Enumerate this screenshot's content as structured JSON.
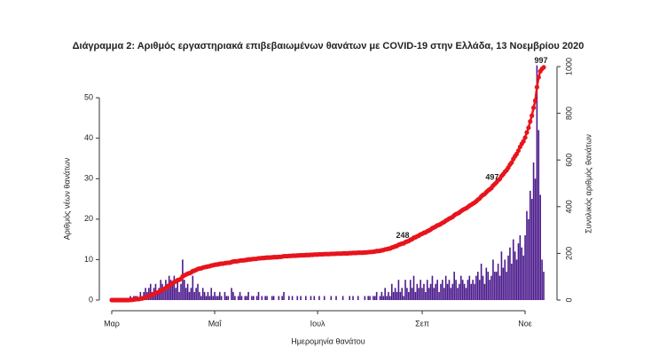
{
  "chart_data": {
    "type": "bar",
    "title": "Διάγραμμα 2: Αριθμός εργαστηριακά επιβεβαιωμένων θανάτων με COVID-19 στην Ελλάδα, 13 Νοεμβρίου 2020",
    "x_label": "Ημερομηνία θανάτου",
    "y_label": "Αριθμός νέων θανάτων",
    "y2_label": "Συνολικός αριθμός θανάτων",
    "categories": [
      "Μαρ",
      null,
      null,
      null,
      null,
      null,
      null,
      null,
      null,
      null,
      null,
      null,
      null,
      null,
      null,
      null,
      null,
      null,
      null,
      null,
      null,
      null,
      null,
      null,
      null,
      null,
      null,
      null,
      null,
      null,
      null,
      null,
      null,
      null,
      null,
      null,
      null,
      null,
      null,
      null,
      null,
      null,
      null,
      null,
      null,
      null,
      null,
      null,
      null,
      null,
      null,
      null,
      null,
      null,
      null,
      null,
      null,
      null,
      null,
      null,
      null,
      "Μαΐ",
      null,
      null,
      null,
      null,
      null,
      null,
      null,
      null,
      null,
      null,
      null,
      null,
      null,
      null,
      null,
      null,
      null,
      null,
      null,
      null,
      null,
      null,
      null,
      null,
      null,
      null,
      null,
      null,
      null,
      null,
      null,
      null,
      null,
      null,
      null,
      null,
      null,
      null,
      null,
      null,
      null,
      null,
      null,
      null,
      null,
      null,
      null,
      null,
      null,
      null,
      null,
      null,
      null,
      null,
      null,
      null,
      null,
      null,
      null,
      null,
      "Ιουλ",
      null,
      null,
      null,
      null,
      null,
      null,
      null,
      null,
      null,
      null,
      null,
      null,
      null,
      null,
      null,
      null,
      null,
      null,
      null,
      null,
      null,
      null,
      null,
      null,
      null,
      null,
      null,
      null,
      null,
      null,
      null,
      null,
      null,
      null,
      null,
      null,
      null,
      null,
      null,
      null,
      null,
      null,
      null,
      null,
      null,
      null,
      null,
      null,
      null,
      null,
      null,
      null,
      null,
      null,
      null,
      null,
      null,
      null,
      null,
      null,
      null,
      "Σεπ",
      null,
      null,
      null,
      null,
      null,
      null,
      null,
      null,
      null,
      null,
      null,
      null,
      null,
      null,
      null,
      null,
      null,
      null,
      null,
      null,
      null,
      null,
      null,
      null,
      null,
      null,
      null,
      null,
      null,
      null,
      null,
      null,
      null,
      null,
      null,
      null,
      null,
      null,
      null,
      null,
      null,
      null,
      null,
      null,
      null,
      null,
      null,
      null,
      null,
      null,
      null,
      null,
      null,
      null,
      null,
      null,
      null,
      null,
      null,
      null,
      "Νοε",
      null,
      null,
      null,
      null,
      null,
      null,
      null,
      null,
      null,
      null,
      null
    ],
    "series": [
      {
        "color": "#4b1a8c",
        "values": [
          0,
          0,
          0,
          0,
          0,
          0,
          0,
          0,
          0,
          0,
          0,
          1,
          0,
          1,
          1,
          1,
          0,
          2,
          1,
          2,
          3,
          2,
          3,
          4,
          2,
          3,
          4,
          2,
          3,
          5,
          4,
          3,
          5,
          4,
          6,
          5,
          4,
          6,
          3,
          5,
          2,
          4,
          10,
          5,
          3,
          4,
          2,
          3,
          6,
          2,
          3,
          4,
          2,
          1,
          3,
          2,
          1,
          2,
          1,
          3,
          1,
          2,
          1,
          1,
          2,
          1,
          0,
          2,
          1,
          1,
          0,
          3,
          2,
          1,
          0,
          1,
          2,
          1,
          0,
          1,
          1,
          2,
          0,
          1,
          1,
          0,
          1,
          2,
          0,
          1,
          0,
          1,
          1,
          0,
          0,
          1,
          1,
          0,
          0,
          1,
          0,
          1,
          2,
          0,
          0,
          1,
          0,
          1,
          0,
          0,
          1,
          0,
          1,
          0,
          0,
          1,
          0,
          0,
          1,
          0,
          1,
          0,
          0,
          1,
          0,
          0,
          1,
          0,
          0,
          0,
          1,
          0,
          0,
          1,
          0,
          0,
          0,
          1,
          0,
          0,
          0,
          1,
          0,
          1,
          0,
          0,
          1,
          0,
          0,
          0,
          1,
          0,
          1,
          1,
          0,
          1,
          1,
          2,
          0,
          1,
          2,
          1,
          3,
          1,
          2,
          1,
          4,
          2,
          3,
          2,
          5,
          2,
          3,
          1,
          5,
          3,
          2,
          5,
          3,
          6,
          2,
          4,
          3,
          5,
          3,
          4,
          2,
          5,
          3,
          4,
          6,
          3,
          4,
          5,
          2,
          4,
          5,
          3,
          6,
          4,
          5,
          3,
          4,
          7,
          5,
          3,
          4,
          6,
          5,
          4,
          3,
          5,
          6,
          4,
          5,
          4,
          6,
          7,
          5,
          9,
          6,
          4,
          8,
          7,
          5,
          6,
          10,
          7,
          7,
          9,
          6,
          12,
          8,
          10,
          7,
          11,
          13,
          9,
          15,
          12,
          10,
          14,
          16,
          13,
          11,
          16,
          22,
          20,
          27,
          25,
          34,
          30,
          58,
          42,
          26,
          10,
          7
        ]
      },
      {
        "type": "line",
        "axis": "y2",
        "color": "#e8141c",
        "values": [
          0,
          0,
          0,
          0,
          0,
          0,
          0,
          0,
          0,
          0,
          0,
          1,
          1,
          2,
          3,
          4,
          4,
          6,
          7,
          9,
          12,
          14,
          17,
          21,
          23,
          26,
          30,
          32,
          35,
          40,
          44,
          47,
          52,
          56,
          62,
          67,
          71,
          77,
          80,
          85,
          87,
          91,
          101,
          106,
          109,
          113,
          115,
          118,
          124,
          126,
          129,
          133,
          135,
          136,
          139,
          141,
          142,
          144,
          145,
          148,
          149,
          151,
          152,
          153,
          155,
          156,
          156,
          158,
          159,
          160,
          160,
          163,
          165,
          166,
          166,
          167,
          169,
          170,
          170,
          171,
          172,
          174,
          174,
          175,
          176,
          176,
          177,
          179,
          179,
          180,
          180,
          181,
          182,
          182,
          182,
          183,
          184,
          184,
          184,
          185,
          185,
          186,
          188,
          188,
          188,
          189,
          189,
          190,
          190,
          190,
          191,
          191,
          192,
          192,
          192,
          193,
          193,
          193,
          194,
          194,
          195,
          195,
          195,
          196,
          196,
          196,
          197,
          197,
          197,
          197,
          198,
          198,
          198,
          199,
          199,
          199,
          199,
          200,
          200,
          200,
          200,
          201,
          201,
          202,
          202,
          202,
          203,
          203,
          203,
          203,
          204,
          204,
          205,
          206,
          206,
          207,
          208,
          210,
          210,
          211,
          213,
          214,
          217,
          218,
          220,
          221,
          225,
          227,
          230,
          232,
          237,
          239,
          242,
          243,
          248,
          251,
          253,
          258,
          261,
          267,
          269,
          273,
          276,
          281,
          284,
          288,
          290,
          295,
          298,
          302,
          308,
          311,
          315,
          320,
          322,
          326,
          331,
          334,
          340,
          344,
          349,
          352,
          356,
          363,
          368,
          371,
          375,
          381,
          386,
          390,
          393,
          398,
          404,
          408,
          413,
          417,
          423,
          430,
          435,
          444,
          450,
          454,
          462,
          469,
          474,
          480,
          490,
          497,
          504,
          513,
          519,
          531,
          539,
          549,
          556,
          567,
          580,
          589,
          604,
          616,
          626,
          640,
          656,
          669,
          680,
          696,
          718,
          738,
          765,
          790,
          824,
          854,
          912,
          954,
          980,
          990,
          997
        ],
        "value_labels": [
          null,
          null,
          null,
          null,
          null,
          null,
          null,
          null,
          null,
          null,
          null,
          null,
          null,
          null,
          null,
          null,
          null,
          null,
          null,
          null,
          null,
          null,
          null,
          null,
          null,
          null,
          null,
          null,
          null,
          null,
          null,
          null,
          null,
          null,
          null,
          null,
          null,
          null,
          null,
          null,
          null,
          null,
          null,
          null,
          null,
          null,
          null,
          null,
          null,
          null,
          null,
          null,
          null,
          null,
          null,
          null,
          null,
          null,
          null,
          null,
          null,
          null,
          null,
          null,
          null,
          null,
          null,
          null,
          null,
          null,
          null,
          null,
          null,
          null,
          null,
          null,
          null,
          null,
          null,
          null,
          null,
          null,
          null,
          null,
          null,
          null,
          null,
          null,
          null,
          null,
          null,
          null,
          null,
          null,
          null,
          null,
          null,
          null,
          null,
          null,
          null,
          null,
          null,
          null,
          null,
          null,
          null,
          null,
          null,
          null,
          null,
          null,
          null,
          null,
          null,
          null,
          null,
          null,
          null,
          null,
          null,
          null,
          null,
          null,
          null,
          null,
          null,
          null,
          null,
          null,
          null,
          null,
          null,
          null,
          null,
          null,
          null,
          null,
          null,
          null,
          null,
          null,
          null,
          null,
          null,
          null,
          null,
          null,
          null,
          null,
          null,
          null,
          null,
          null,
          null,
          null,
          null,
          null,
          null,
          null,
          null,
          null,
          null,
          null,
          null,
          null,
          null,
          null,
          null,
          null,
          null,
          null,
          null,
          null,
          "248",
          null,
          null,
          null,
          null,
          null,
          null,
          null,
          null,
          null,
          null,
          null,
          null,
          null,
          null,
          null,
          null,
          null,
          null,
          null,
          null,
          null,
          null,
          null,
          null,
          null,
          null,
          null,
          null,
          null,
          null,
          null,
          null,
          null,
          null,
          null,
          null,
          null,
          null,
          null,
          null,
          null,
          null,
          null,
          null,
          null,
          null,
          null,
          null,
          null,
          null,
          null,
          null,
          "497",
          null,
          null,
          null,
          null,
          null,
          null,
          null,
          null,
          null,
          null,
          null,
          null,
          null,
          null,
          null,
          null,
          null,
          null,
          null,
          null,
          null,
          null,
          null,
          null,
          null,
          null,
          null,
          null,
          "997"
        ]
      }
    ],
    "ylim": [
      0,
      57.7
    ],
    "yticks": [
      0,
      10,
      20,
      30,
      40,
      50
    ],
    "y2lim": [
      0,
      1000
    ],
    "y2ticks": [
      0,
      200,
      400,
      600,
      800,
      1000
    ]
  }
}
